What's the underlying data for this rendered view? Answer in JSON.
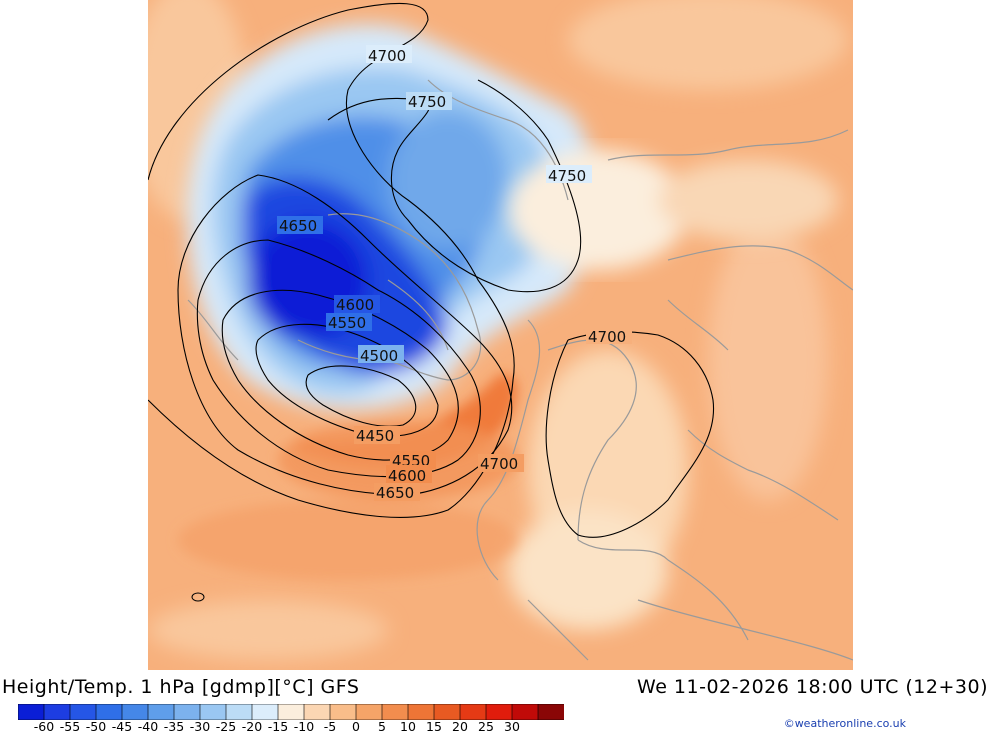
{
  "title": "Height/Temp. 1 hPa [gdmp][°C] GFS",
  "datetime": "We 11-02-2026 18:00 UTC (12+30)",
  "credit": "©weatheronline.co.uk",
  "colorbar": {
    "ticks": [
      "-60",
      "-55",
      "-50",
      "-45",
      "-40",
      "-35",
      "-30",
      "-25",
      "-20",
      "-15",
      "-10",
      "-5",
      "0",
      "5",
      "10",
      "15",
      "20",
      "25",
      "30"
    ],
    "colors": [
      "#0a1ed6",
      "#1d3de2",
      "#2556e6",
      "#2f6fe8",
      "#4587e8",
      "#5f9eea",
      "#7cb2ee",
      "#9ac7f2",
      "#bcdcf6",
      "#dcedfb",
      "#fbeedd",
      "#fbd6b3",
      "#f9bd8a",
      "#f5a468",
      "#f28d4e",
      "#ee7536",
      "#e85a22",
      "#e53a15",
      "#e01c0c",
      "#c00a08",
      "#8a0606"
    ]
  },
  "contour_labels": [
    "4700",
    "4750",
    "4750",
    "4650",
    "4600",
    "4550",
    "4500",
    "4450",
    "4550",
    "4600",
    "4650",
    "4700",
    "4700"
  ],
  "colors": {
    "background_warm": "#f7b07c",
    "contour_line": "#000000",
    "coastline": "#9a9a9a"
  }
}
